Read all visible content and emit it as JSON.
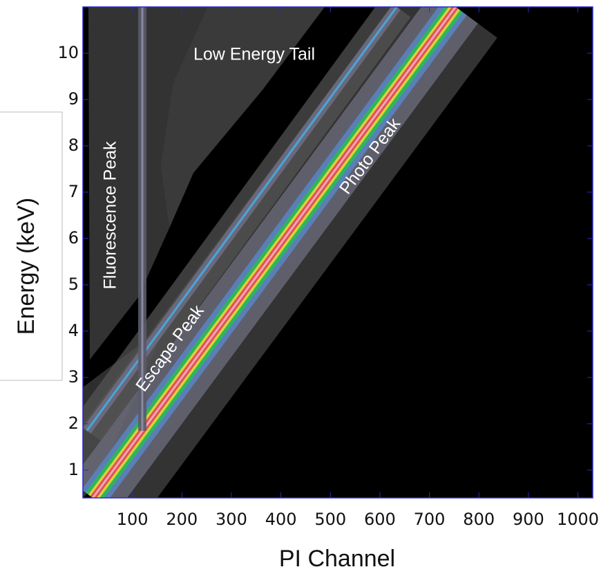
{
  "chart_data": {
    "type": "response-matrix",
    "xlabel": "PI Channel",
    "ylabel": "Energy (keV)",
    "xlim": [
      0,
      1030
    ],
    "ylim": [
      0.4,
      11.0
    ],
    "xticks": [
      100,
      200,
      300,
      400,
      500,
      600,
      700,
      800,
      900,
      1000
    ],
    "yticks": [
      1,
      2,
      3,
      4,
      5,
      6,
      7,
      8,
      9,
      10
    ],
    "series": [
      {
        "name": "Photo Peak",
        "x": [
          20,
          753
        ],
        "y": [
          0.4,
          11.0
        ]
      },
      {
        "name": "Escape Peak",
        "x": [
          8,
          634
        ],
        "y": [
          1.85,
          11.0
        ]
      },
      {
        "name": "Fluorescence Peak",
        "x": [
          120,
          120
        ],
        "y": [
          1.85,
          11.0
        ]
      }
    ],
    "annotations": [
      "Low Energy Tail"
    ]
  }
}
